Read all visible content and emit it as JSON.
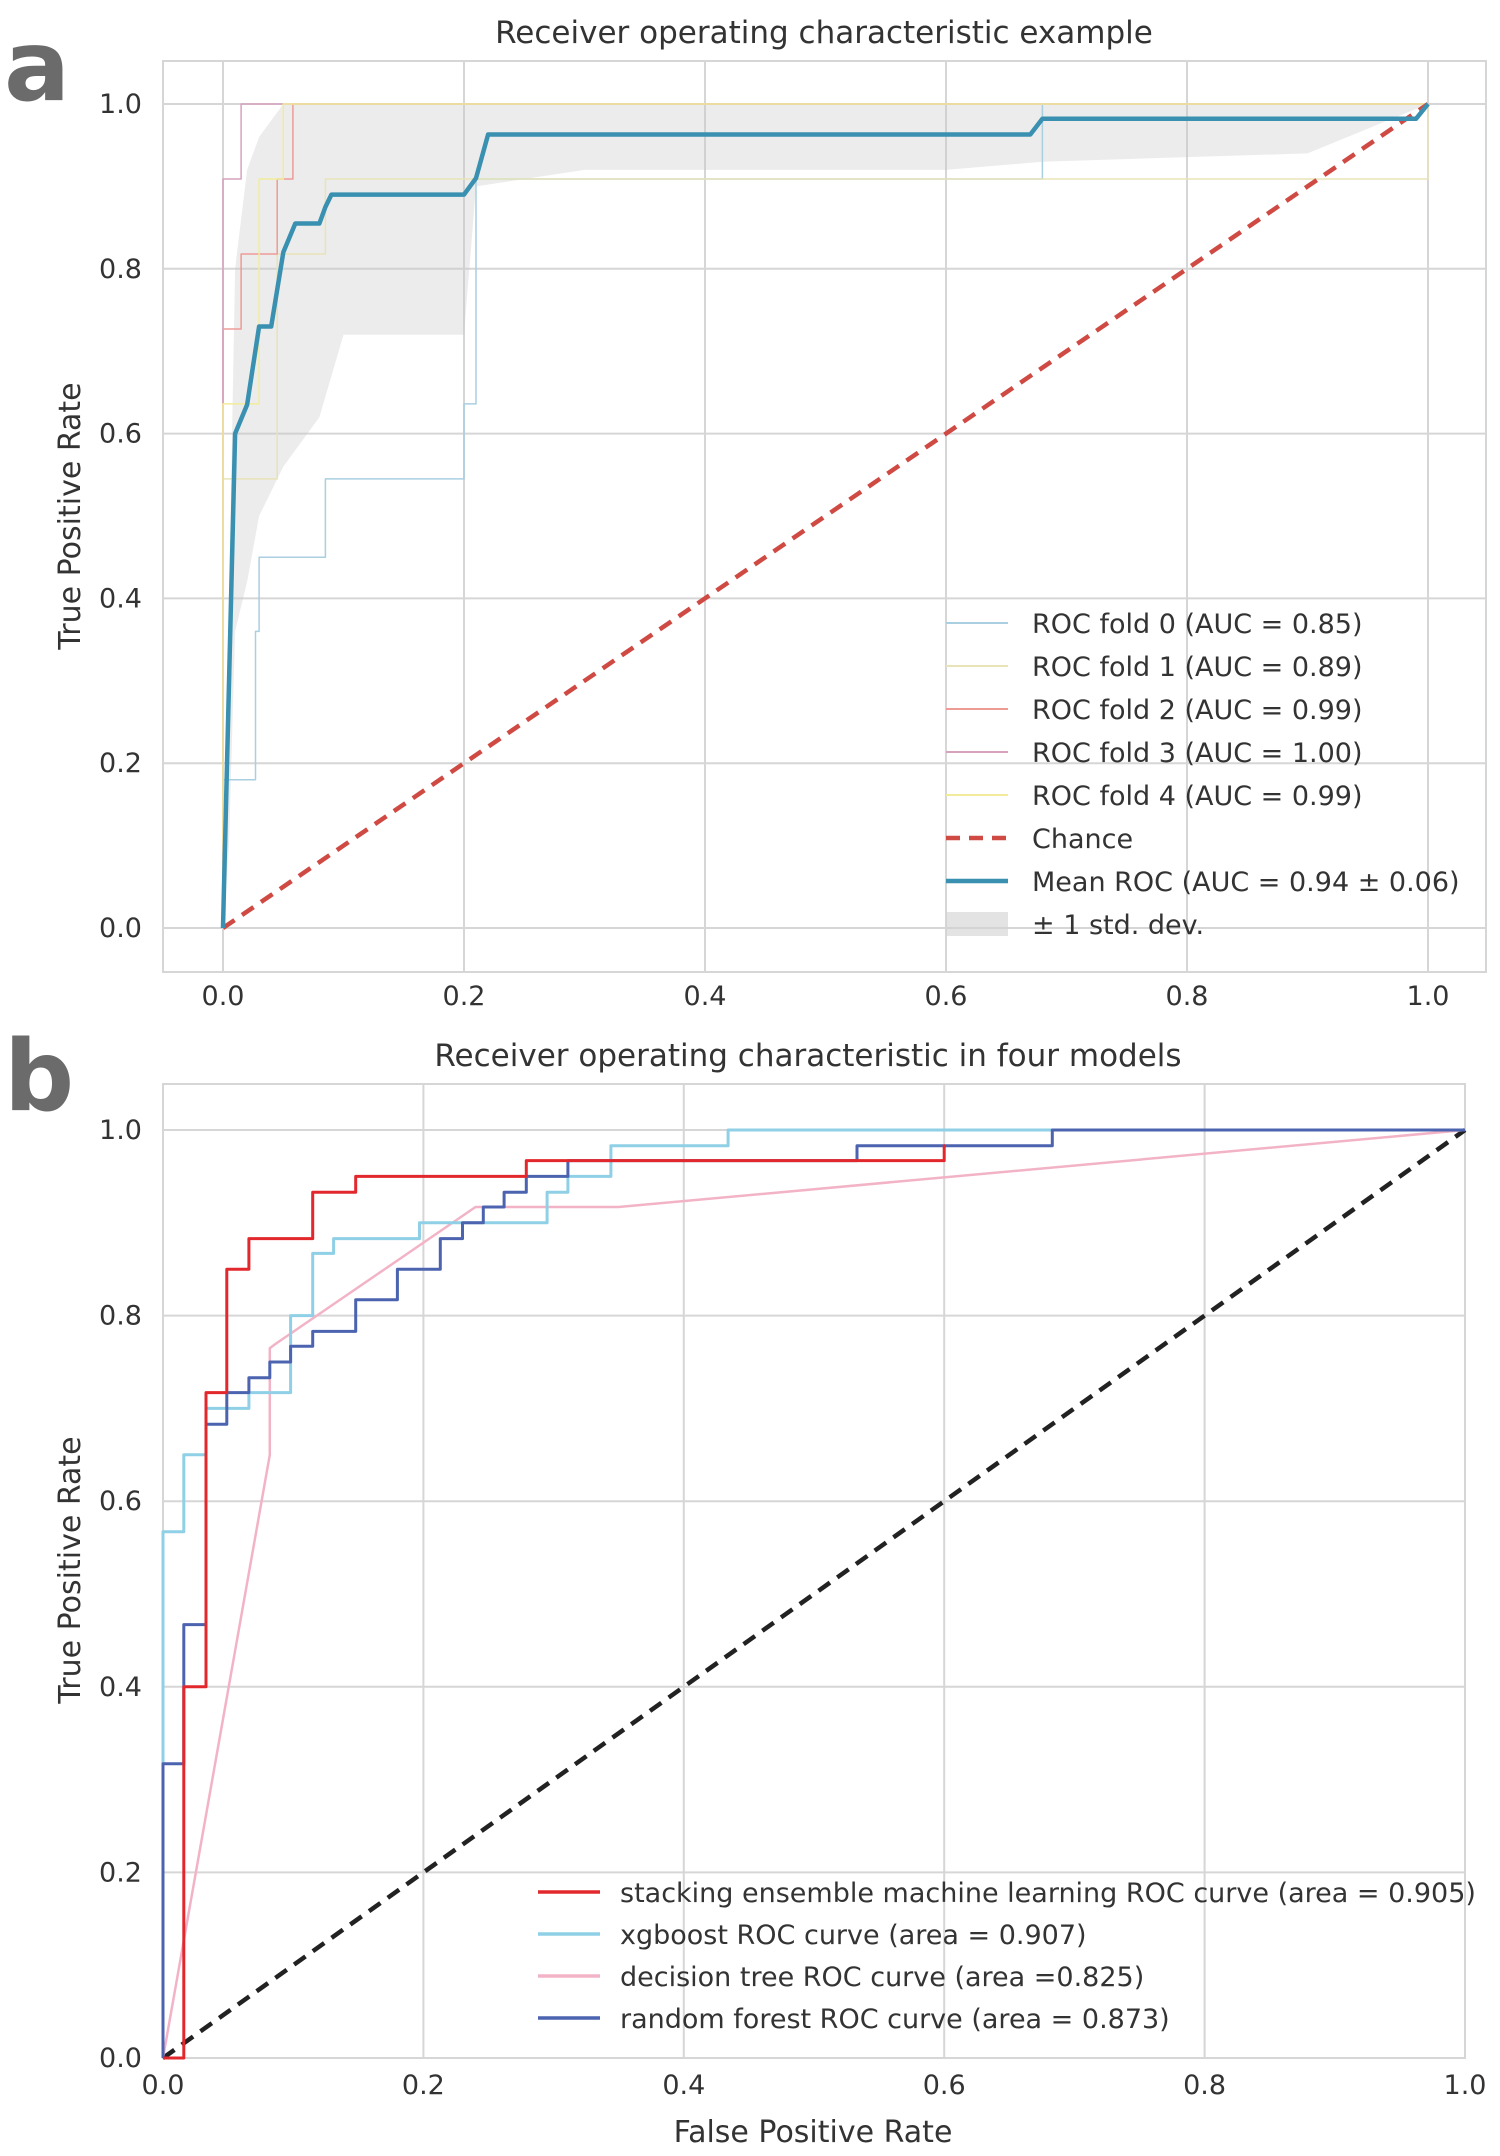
{
  "panel_labels": [
    "a",
    "b"
  ],
  "chart_data": [
    {
      "type": "line",
      "panel": "a",
      "title": "Receiver operating characteristic example",
      "xlabel": "",
      "ylabel": "True Positive Rate",
      "xlim": [
        -0.05,
        1.05
      ],
      "ylim": [
        -0.05,
        1.05
      ],
      "xticks": [
        0.0,
        0.2,
        0.4,
        0.6,
        0.8,
        1.0
      ],
      "yticks": [
        0.0,
        0.2,
        0.4,
        0.6,
        0.8,
        1.0
      ],
      "xtick_labels": [
        "0.0",
        "0.2",
        "0.4",
        "0.6",
        "0.8",
        "1.0"
      ],
      "ytick_labels": [
        "0.0",
        "0.2",
        "0.4",
        "0.6",
        "0.8",
        "1.0"
      ],
      "grid": true,
      "legend_position": "lower-right",
      "band": {
        "label": "± 1 std. dev.",
        "color": "#c8c8c8",
        "x": [
          0.0,
          0.005,
          0.01,
          0.02,
          0.03,
          0.05,
          0.08,
          0.1,
          0.2,
          0.21,
          0.3,
          0.6,
          0.68,
          0.9,
          1.0
        ],
        "upper": [
          0.0,
          0.4,
          0.8,
          0.92,
          0.96,
          1.0,
          1.0,
          1.0,
          1.0,
          1.0,
          1.0,
          1.0,
          1.0,
          1.0,
          1.0
        ],
        "lower": [
          0.0,
          0.1,
          0.36,
          0.42,
          0.5,
          0.56,
          0.62,
          0.72,
          0.72,
          0.9,
          0.92,
          0.92,
          0.93,
          0.94,
          1.0
        ]
      },
      "series": [
        {
          "name": "ROC fold 0 (AUC = 0.85)",
          "color": "#a9cfe0",
          "width": 1.5,
          "x": [
            0.0,
            0.0,
            0.027,
            0.027,
            0.03,
            0.03,
            0.05,
            0.05,
            0.085,
            0.085,
            0.2,
            0.2,
            0.21,
            0.21,
            0.68,
            0.68,
            1.0
          ],
          "y": [
            0.0,
            0.18,
            0.18,
            0.36,
            0.36,
            0.45,
            0.45,
            0.45,
            0.45,
            0.545,
            0.545,
            0.636,
            0.636,
            0.909,
            0.909,
            1.0,
            1.0
          ]
        },
        {
          "name": "ROC fold 1 (AUC = 0.89)",
          "color": "#e8e3b8",
          "width": 1.5,
          "x": [
            0.0,
            0.0,
            0.045,
            0.045,
            0.085,
            0.085,
            0.2,
            0.2,
            1.0,
            1.0
          ],
          "y": [
            0.0,
            0.545,
            0.545,
            0.818,
            0.818,
            0.909,
            0.909,
            0.909,
            0.909,
            1.0
          ]
        },
        {
          "name": "ROC fold 2 (AUC = 0.99)",
          "color": "#ee9b96",
          "width": 1.5,
          "x": [
            0.0,
            0.0,
            0.015,
            0.015,
            0.045,
            0.045,
            0.058,
            0.058,
            1.0
          ],
          "y": [
            0.0,
            0.727,
            0.727,
            0.818,
            0.818,
            0.909,
            0.909,
            1.0,
            1.0
          ]
        },
        {
          "name": "ROC fold 3 (AUC = 1.00)",
          "color": "#d7a2bd",
          "width": 1.5,
          "x": [
            0.0,
            0.0,
            0.015,
            0.015,
            1.0
          ],
          "y": [
            0.0,
            0.909,
            0.909,
            1.0,
            1.0
          ]
        },
        {
          "name": "ROC fold 4 (AUC = 0.99)",
          "color": "#f2ec9a",
          "width": 1.5,
          "x": [
            0.0,
            0.0,
            0.03,
            0.03,
            0.05,
            0.05,
            1.0
          ],
          "y": [
            0.0,
            0.636,
            0.636,
            0.909,
            0.909,
            1.0,
            1.0
          ]
        },
        {
          "name": "Chance",
          "color": "#d04a44",
          "width": 4.5,
          "dash": "14,9",
          "x": [
            0.0,
            1.0
          ],
          "y": [
            0.0,
            1.0
          ]
        },
        {
          "name": "Mean ROC (AUC = 0.94 ± 0.06)",
          "color": "#3990b0",
          "width": 4.5,
          "x": [
            0.0,
            0.01,
            0.02,
            0.03,
            0.04,
            0.05,
            0.06,
            0.07,
            0.08,
            0.085,
            0.09,
            0.1,
            0.2,
            0.21,
            0.22,
            0.3,
            0.5,
            0.67,
            0.68,
            0.9,
            0.99,
            1.0
          ],
          "y": [
            0.0,
            0.6,
            0.635,
            0.73,
            0.73,
            0.82,
            0.855,
            0.855,
            0.855,
            0.875,
            0.89,
            0.89,
            0.89,
            0.91,
            0.963,
            0.963,
            0.963,
            0.963,
            0.982,
            0.982,
            0.982,
            1.0
          ]
        }
      ],
      "legend": [
        {
          "label": "ROC fold 0 (AUC = 0.85)",
          "kind": "line",
          "color": "#a9cfe0",
          "width": 2
        },
        {
          "label": "ROC fold 1 (AUC = 0.89)",
          "kind": "line",
          "color": "#e8e3b8",
          "width": 2
        },
        {
          "label": "ROC fold 2 (AUC = 0.99)",
          "kind": "line",
          "color": "#ee9b96",
          "width": 2
        },
        {
          "label": "ROC fold 3 (AUC = 1.00)",
          "kind": "line",
          "color": "#d7a2bd",
          "width": 2
        },
        {
          "label": "ROC fold 4 (AUC = 0.99)",
          "kind": "line",
          "color": "#f2ec9a",
          "width": 2
        },
        {
          "label": "Chance",
          "kind": "dash",
          "color": "#d04a44",
          "width": 4.5
        },
        {
          "label": "Mean ROC (AUC = 0.94 ± 0.06)",
          "kind": "line",
          "color": "#3990b0",
          "width": 4.5
        },
        {
          "label": "± 1 std. dev.",
          "kind": "patch",
          "color": "#d0d0d0",
          "width": 0
        }
      ]
    },
    {
      "type": "line",
      "panel": "b",
      "title": "Receiver operating characteristic in four models",
      "xlabel": "False Positive Rate",
      "ylabel": "True Positive Rate",
      "xlim": [
        0.0,
        1.0
      ],
      "ylim": [
        0.0,
        1.05
      ],
      "xticks": [
        0.0,
        0.2,
        0.4,
        0.6,
        0.8,
        1.0
      ],
      "yticks": [
        0.0,
        0.2,
        0.4,
        0.6,
        0.8,
        1.0
      ],
      "xtick_labels": [
        "0.0",
        "0.2",
        "0.4",
        "0.6",
        "0.8",
        "1.0"
      ],
      "ytick_labels": [
        "0.0",
        "0.2",
        "0.4",
        "0.6",
        "0.8",
        "1.0"
      ],
      "grid": true,
      "legend_position": "lower-right",
      "series": [
        {
          "name": "diagonal",
          "color": "#222222",
          "width": 4.5,
          "dash": "14,9",
          "x": [
            0.0,
            1.0
          ],
          "y": [
            0.0,
            1.0
          ]
        },
        {
          "name": "decision tree ROC curve (area =0.825)",
          "color": "#f3b3c6",
          "width": 2.5,
          "x": [
            0.0,
            0.082,
            0.082,
            0.087,
            0.24,
            0.35,
            1.0
          ],
          "y": [
            0.0,
            0.65,
            0.765,
            0.77,
            0.917,
            0.917,
            1.0
          ]
        },
        {
          "name": "xgboost ROC curve (area = 0.907)",
          "color": "#8fd0e6",
          "width": 3,
          "x": [
            0.0,
            0.0,
            0.016,
            0.016,
            0.033,
            0.033,
            0.066,
            0.066,
            0.098,
            0.098,
            0.115,
            0.115,
            0.131,
            0.131,
            0.197,
            0.197,
            0.295,
            0.295,
            0.311,
            0.311,
            0.344,
            0.344,
            0.434,
            0.434,
            1.0,
            1.0
          ],
          "y": [
            0.0,
            0.567,
            0.567,
            0.65,
            0.65,
            0.7,
            0.7,
            0.717,
            0.717,
            0.8,
            0.8,
            0.867,
            0.867,
            0.883,
            0.883,
            0.9,
            0.9,
            0.933,
            0.933,
            0.95,
            0.95,
            0.983,
            0.983,
            1.0,
            1.0,
            1.0
          ]
        },
        {
          "name": "random forest ROC curve (area = 0.873)",
          "color": "#4c64b0",
          "width": 3,
          "x": [
            0.0,
            0.0,
            0.016,
            0.016,
            0.033,
            0.033,
            0.049,
            0.049,
            0.066,
            0.066,
            0.082,
            0.082,
            0.098,
            0.098,
            0.115,
            0.115,
            0.148,
            0.148,
            0.18,
            0.18,
            0.213,
            0.213,
            0.23,
            0.23,
            0.246,
            0.246,
            0.262,
            0.262,
            0.279,
            0.279,
            0.311,
            0.311,
            0.533,
            0.533,
            0.683,
            0.683,
            1.0
          ],
          "y": [
            0.0,
            0.317,
            0.317,
            0.467,
            0.467,
            0.683,
            0.683,
            0.717,
            0.717,
            0.733,
            0.733,
            0.75,
            0.75,
            0.767,
            0.767,
            0.783,
            0.783,
            0.817,
            0.817,
            0.85,
            0.85,
            0.883,
            0.883,
            0.9,
            0.9,
            0.917,
            0.917,
            0.933,
            0.933,
            0.95,
            0.95,
            0.967,
            0.967,
            0.983,
            0.983,
            1.0,
            1.0
          ]
        },
        {
          "name": "stacking ensemble machine learning ROC curve (area = 0.905)",
          "color": "#e2282c",
          "width": 3,
          "x": [
            0.0,
            0.0,
            0.016,
            0.016,
            0.033,
            0.033,
            0.049,
            0.049,
            0.066,
            0.066,
            0.115,
            0.115,
            0.148,
            0.148,
            0.279,
            0.279,
            0.311,
            0.311,
            0.6,
            0.6,
            0.6
          ],
          "y": [
            0.0,
            0.0,
            0.0,
            0.4,
            0.4,
            0.717,
            0.717,
            0.85,
            0.85,
            0.883,
            0.883,
            0.933,
            0.933,
            0.95,
            0.95,
            0.967,
            0.967,
            0.967,
            0.967,
            0.983,
            0.967
          ]
        }
      ],
      "legend": [
        {
          "label": "stacking ensemble machine learning ROC curve (area = 0.905)",
          "kind": "line",
          "color": "#e2282c",
          "width": 3.5
        },
        {
          "label": "xgboost ROC curve (area = 0.907)",
          "kind": "line",
          "color": "#8fd0e6",
          "width": 3.5
        },
        {
          "label": "decision tree ROC curve (area =0.825)",
          "kind": "line",
          "color": "#f3b3c6",
          "width": 3.5
        },
        {
          "label": "random forest ROC curve (area = 0.873)",
          "kind": "line",
          "color": "#4c64b0",
          "width": 3.5
        }
      ]
    }
  ]
}
